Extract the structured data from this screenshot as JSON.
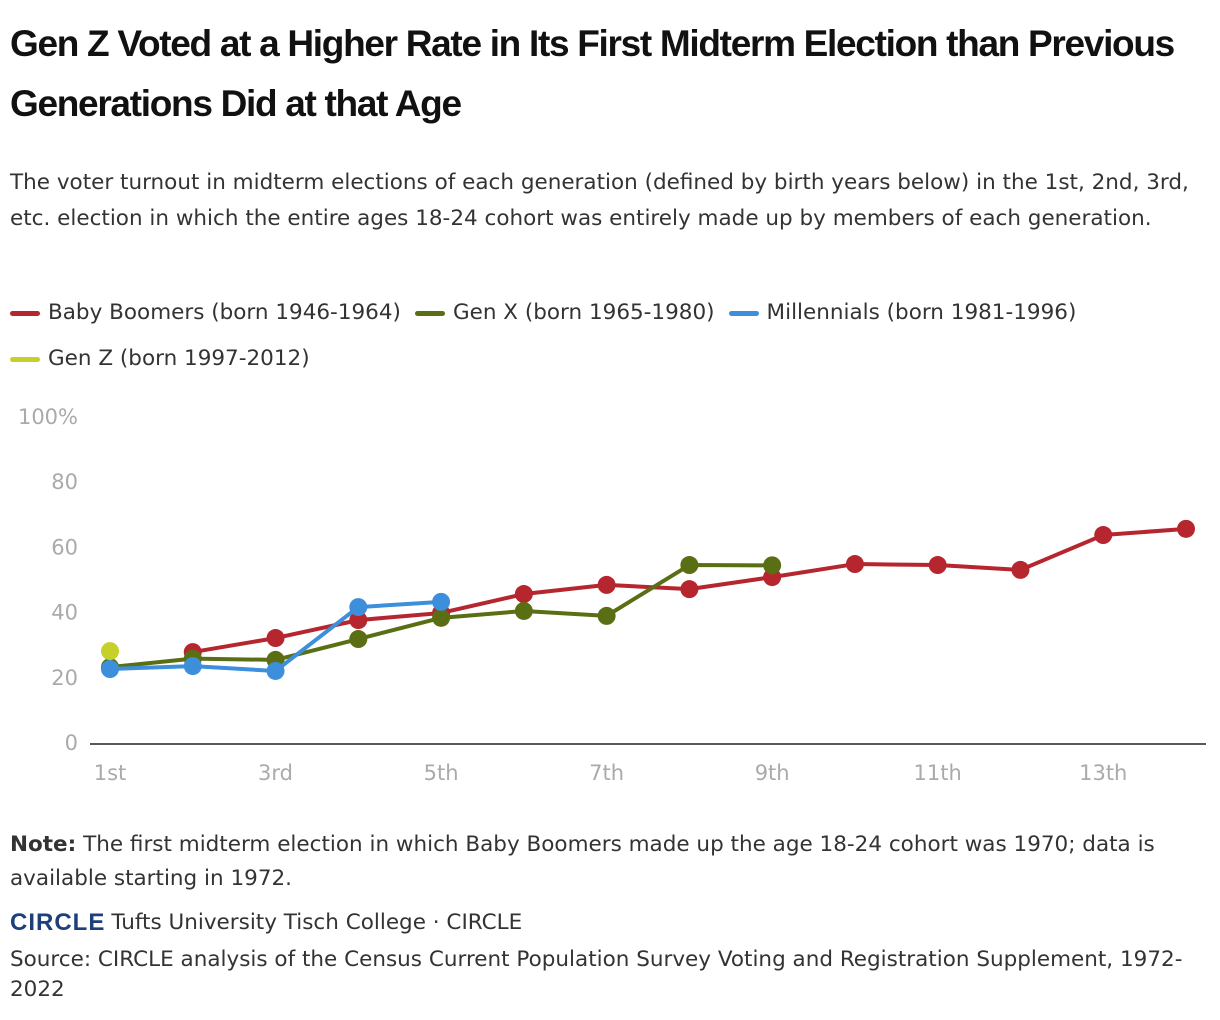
{
  "chart_data": {
    "type": "line",
    "title": "Gen Z Voted at a Higher Rate in Its First Midterm Election than Previous Generations Did at that Age",
    "subtitle": "The voter turnout in midterm elections of each generation (defined by birth years below) in the 1st, 2nd, 3rd, etc. election in which the entire ages 18-24 cohort was entirely made up by members of each generation.",
    "categories": [
      "1st",
      null,
      "3rd",
      null,
      "5th",
      null,
      "7th",
      null,
      "9th",
      null,
      "11th",
      null,
      "13th",
      null
    ],
    "series": [
      {
        "name": "Baby Boomers (born 1946-1964)",
        "color": "#b5262e",
        "values": [
          null,
          28.2,
          32.5,
          38.0,
          40.2,
          46.0,
          48.8,
          47.5,
          51.2,
          55.2,
          54.9,
          53.4,
          64.1,
          66.0
        ]
      },
      {
        "name": "Gen X (born 1965-1980)",
        "color": "#5a6e13",
        "values": [
          23.6,
          26.2,
          25.8,
          32.2,
          38.7,
          40.8,
          39.3,
          54.9,
          54.8,
          null,
          null,
          null,
          null,
          null
        ]
      },
      {
        "name": "Millennials (born 1981-1996)",
        "color": "#3d8fdb",
        "values": [
          23.0,
          23.9,
          22.4,
          42.0,
          43.6,
          null,
          null,
          null,
          null,
          null,
          null,
          null,
          null,
          null
        ]
      },
      {
        "name": "Gen Z (born 1997-2012)",
        "color": "#c5d12a",
        "values": [
          28.5,
          null,
          null,
          null,
          null,
          null,
          null,
          null,
          null,
          null,
          null,
          null,
          null,
          null
        ]
      }
    ],
    "ylim": [
      0,
      100
    ],
    "yticks": [
      0,
      20,
      40,
      60,
      80,
      {
        "value": 100,
        "label": "100%"
      }
    ],
    "grid": false,
    "note_label": "Note:",
    "note": "The first midterm election in which Baby Boomers made up the age 18-24 cohort was 1970; data is available starting in 1972.",
    "logo": "CIRCLE",
    "attribution": "Tufts University Tisch College · CIRCLE",
    "source": "Source: CIRCLE analysis of the Census Current Population Survey Voting and Registration Supplement, 1972-2022"
  }
}
